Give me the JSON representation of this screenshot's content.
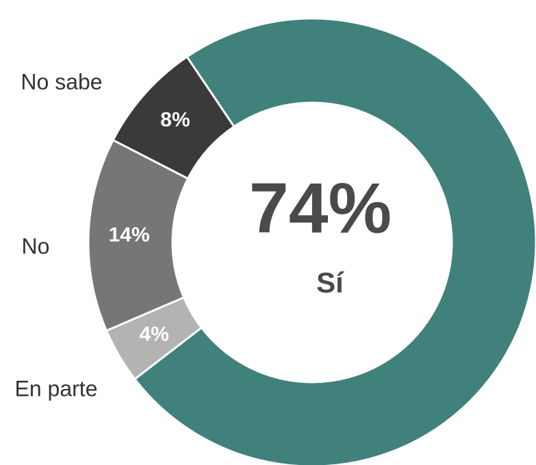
{
  "chart_data": {
    "type": "donut",
    "categories": [
      "Sí",
      "En parte",
      "No",
      "No sabe"
    ],
    "values": [
      74,
      4,
      14,
      8
    ],
    "value_labels": [
      "74%",
      "4%",
      "14%",
      "8%"
    ],
    "colors": [
      "#40817c",
      "#b3b3b3",
      "#767676",
      "#3a3a3a"
    ]
  }
}
